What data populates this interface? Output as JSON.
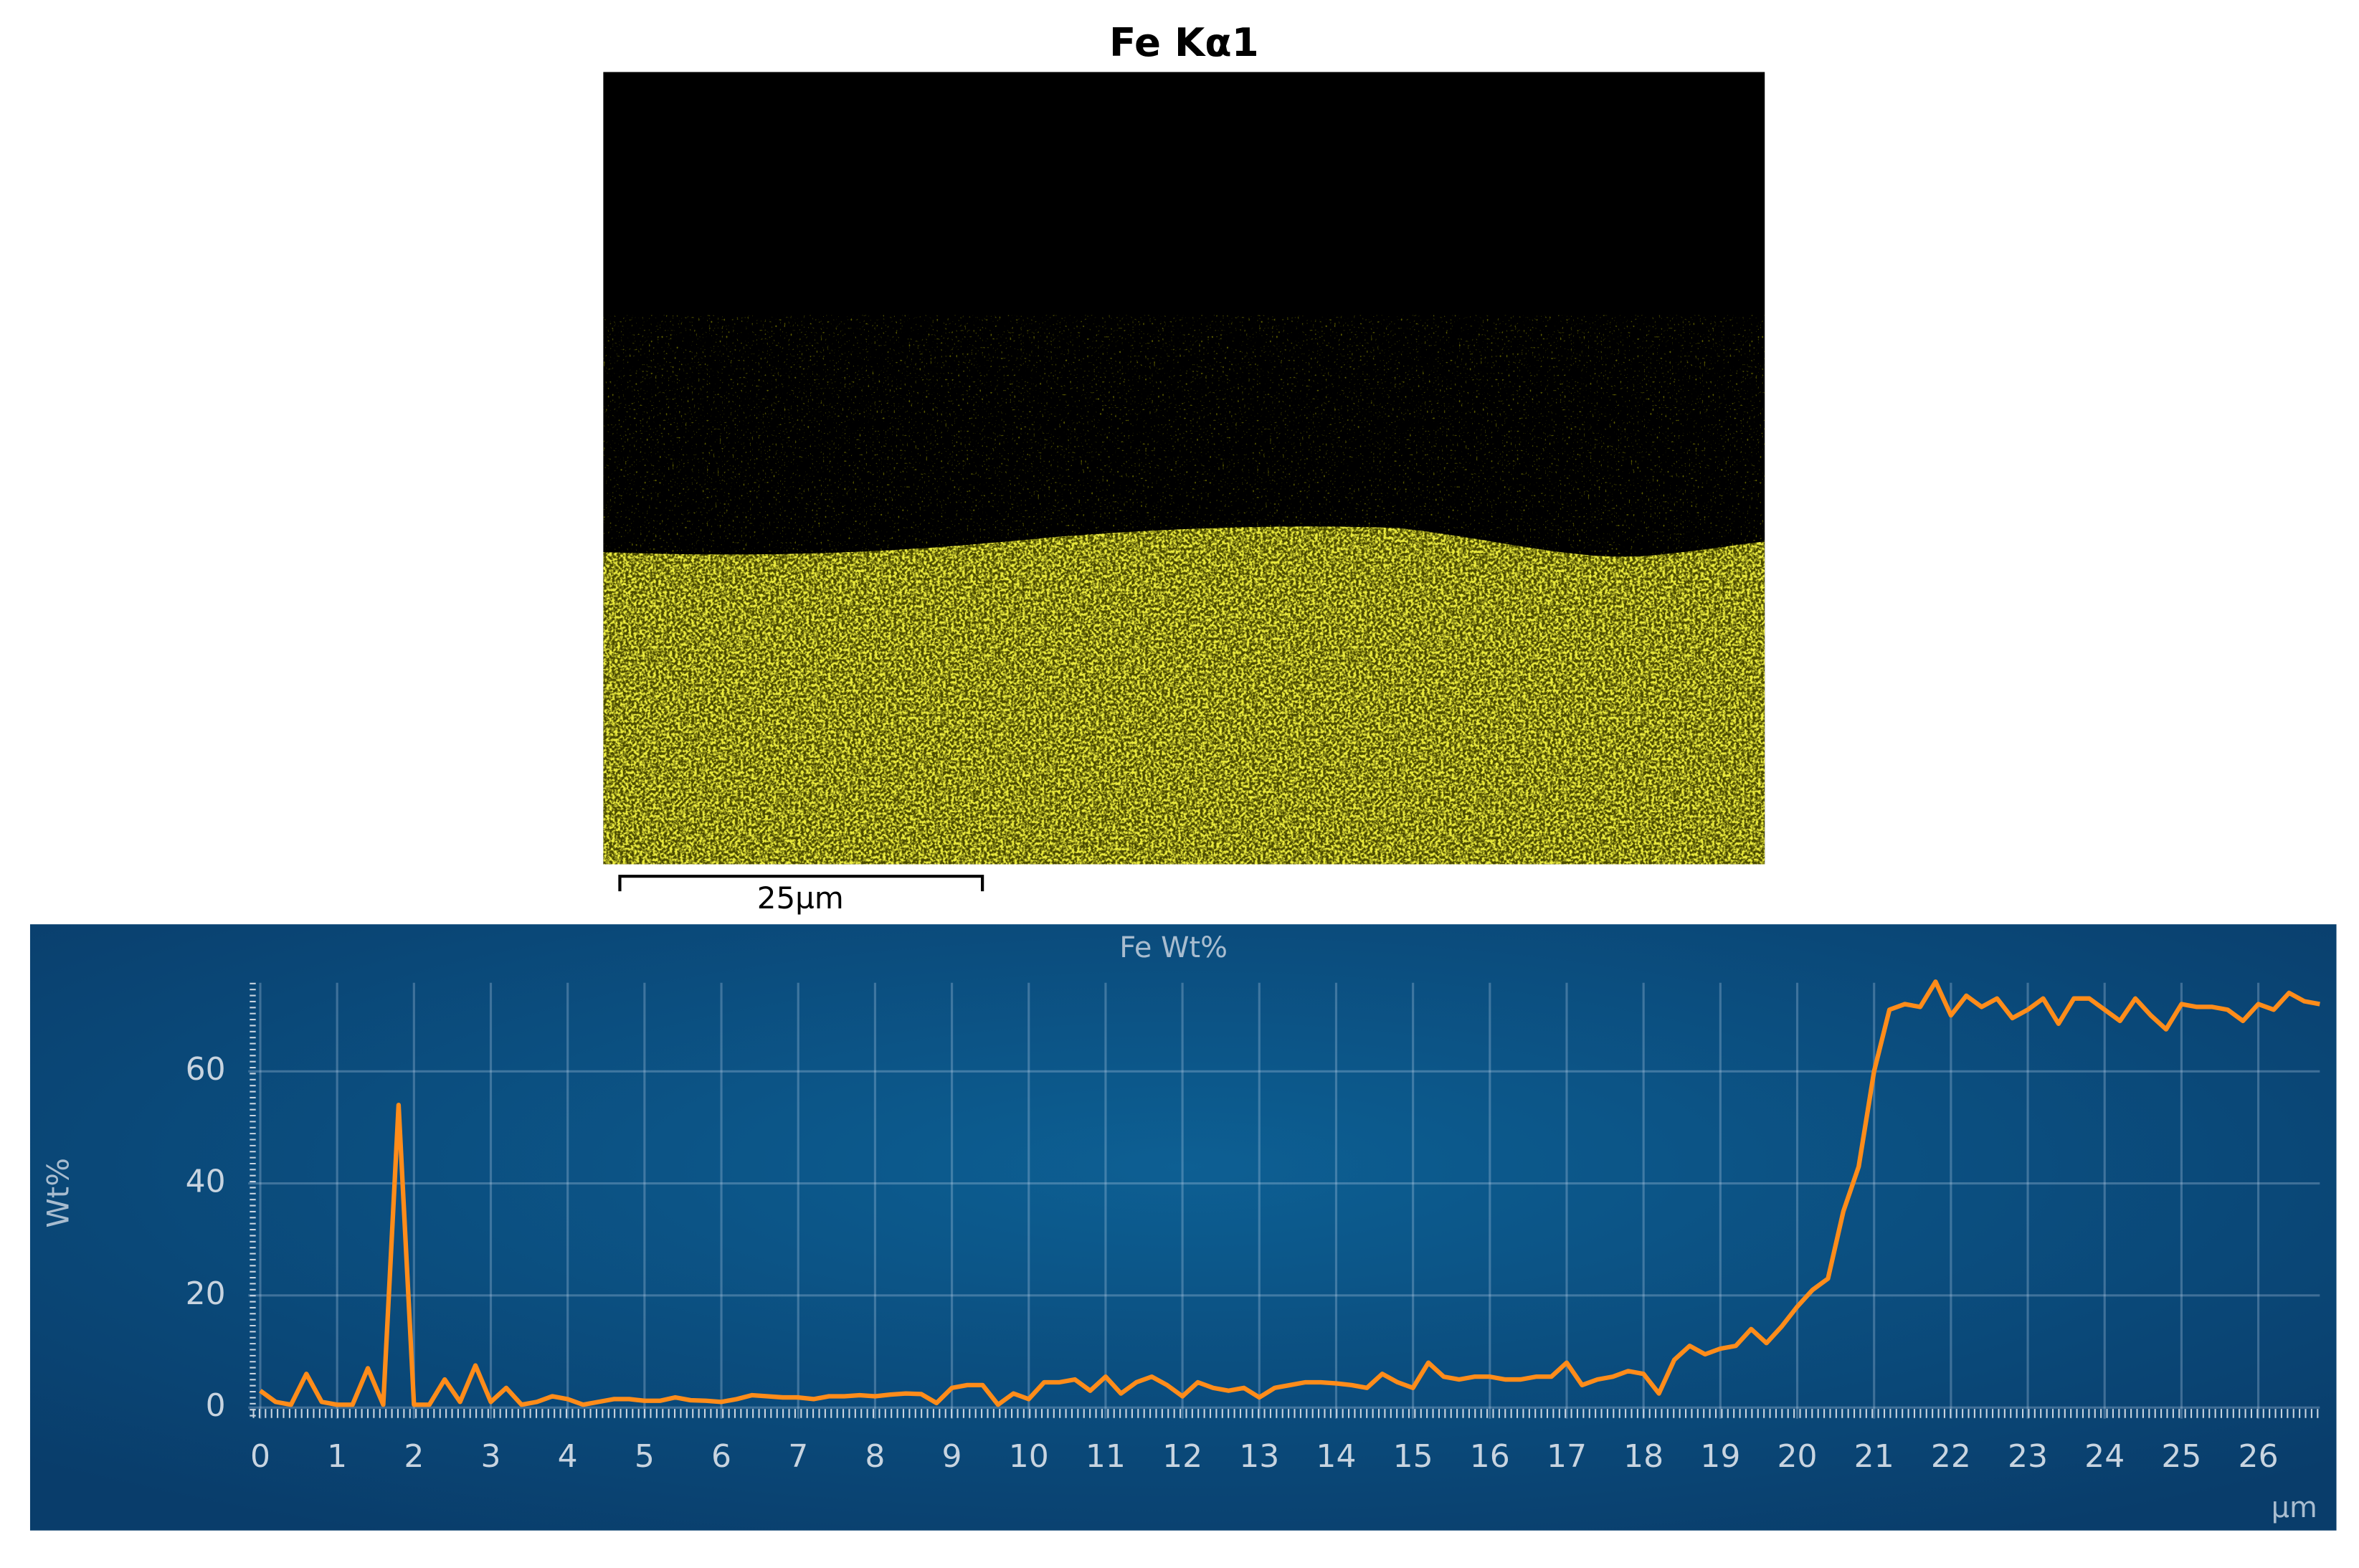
{
  "map": {
    "title": "Fe Kα1",
    "scale_bar_label": "25µm"
  },
  "chart_data": {
    "type": "line",
    "title": "Fe Wt%",
    "y_label": "Wt%",
    "x_label": "µm",
    "color": "#ff8c1a",
    "grid": true,
    "xlim": [
      0,
      26.8
    ],
    "xticks": [
      0,
      1,
      2,
      3,
      4,
      5,
      6,
      7,
      8,
      9,
      10,
      11,
      12,
      13,
      14,
      15,
      16,
      17,
      18,
      19,
      20,
      21,
      22,
      23,
      24,
      25,
      26
    ],
    "ylim": [
      -2,
      75.8
    ],
    "yticks": [
      0,
      20,
      40,
      60
    ],
    "x": [
      0,
      0.2,
      0.4,
      0.6,
      0.8,
      1,
      1.2,
      1.4,
      1.6,
      1.8,
      2,
      2.2,
      2.4,
      2.6,
      2.8,
      3,
      3.2,
      3.4,
      3.6,
      3.8,
      4,
      4.2,
      4.4,
      4.6,
      4.8,
      5,
      5.2,
      5.4,
      5.6,
      5.8,
      6,
      6.2,
      6.4,
      6.6,
      6.8,
      7,
      7.2,
      7.4,
      7.6,
      7.8,
      8,
      8.2,
      8.4,
      8.6,
      8.8,
      9,
      9.2,
      9.4,
      9.6,
      9.8,
      10,
      10.2,
      10.4,
      10.6,
      10.8,
      11,
      11.2,
      11.4,
      11.6,
      11.8,
      12,
      12.2,
      12.4,
      12.6,
      12.8,
      13,
      13.2,
      13.4,
      13.6,
      13.8,
      14,
      14.2,
      14.4,
      14.6,
      14.8,
      15,
      15.2,
      15.4,
      15.6,
      15.8,
      16,
      16.2,
      16.4,
      16.6,
      16.8,
      17,
      17.2,
      17.4,
      17.6,
      17.8,
      18,
      18.2,
      18.4,
      18.6,
      18.8,
      19,
      19.2,
      19.4,
      19.6,
      19.8,
      20,
      20.2,
      20.4,
      20.6,
      20.8,
      21,
      21.2,
      21.4,
      21.6,
      21.8,
      22,
      22.2,
      22.4,
      22.6,
      22.8,
      23,
      23.2,
      23.4,
      23.6,
      23.8,
      24,
      24.2,
      24.4,
      24.6,
      24.8,
      25,
      25.2,
      25.4,
      25.6,
      25.8,
      26,
      26.2,
      26.4,
      26.6,
      26.8
    ],
    "values": [
      3,
      1,
      0.5,
      6,
      1,
      0.5,
      0.5,
      7,
      0.5,
      54,
      0.5,
      0.5,
      5,
      1,
      7.5,
      1,
      3.5,
      0.5,
      1,
      2,
      1.5,
      0.5,
      1,
      1.5,
      1.5,
      1.2,
      1.2,
      1.8,
      1.3,
      1.2,
      1,
      1.5,
      2.2,
      2,
      1.8,
      1.8,
      1.5,
      2,
      2,
      2.2,
      2,
      2.3,
      2.5,
      2.4,
      0.8,
      3.5,
      4,
      4,
      0.5,
      2.5,
      1.5,
      4.5,
      4.5,
      5,
      3,
      5.5,
      2.5,
      4.5,
      5.5,
      4,
      2,
      4.5,
      3.5,
      3,
      3.5,
      1.8,
      3.5,
      4,
      4.5,
      4.5,
      4.3,
      4,
      3.5,
      6,
      4.5,
      3.5,
      8,
      5.5,
      5,
      5.5,
      5.5,
      5,
      5,
      5.5,
      5.5,
      8,
      4,
      5,
      5.5,
      6.5,
      6,
      2.5,
      8.5,
      11,
      9.5,
      10.5,
      11,
      14,
      11.5,
      14.5,
      18,
      21,
      23,
      35,
      43,
      60,
      71,
      72,
      71.5,
      76,
      70,
      73.5,
      71.5,
      73,
      69.5,
      71,
      73,
      68.5,
      73,
      73,
      71,
      69,
      73,
      70,
      67.5,
      72,
      71.5,
      71.5,
      71,
      69,
      72,
      71,
      74,
      72.5,
      72
    ]
  }
}
